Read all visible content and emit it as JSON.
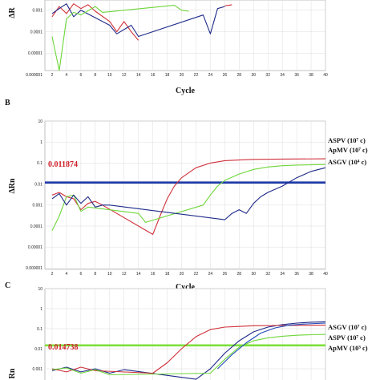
{
  "chart_data": [
    {
      "panel": "",
      "type": "line",
      "xlabel": "Cycle",
      "ylabel": "ΔRn",
      "log_y": true,
      "xlim": [
        1,
        40
      ],
      "ylim": [
        1e-06,
        10
      ],
      "x_ticks": [
        "2",
        "4",
        "6",
        "8",
        "10",
        "12",
        "14",
        "16",
        "18",
        "20",
        "22",
        "24",
        "26",
        "28",
        "30",
        "32",
        "34",
        "36",
        "38",
        "40"
      ],
      "y_ticks": [
        "0.001",
        "0.0001",
        "0.00001",
        "0.000001"
      ],
      "grid": true,
      "threshold": null,
      "series": [
        {
          "color": "#d0303a",
          "points": [
            [
              2,
              0.0005
            ],
            [
              3,
              0.0015
            ],
            [
              4,
              0.0007
            ],
            [
              5,
              0.002
            ],
            [
              6,
              0.0012
            ],
            [
              7,
              0.0018
            ],
            [
              8,
              0.0009
            ],
            [
              10,
              0.0003
            ],
            [
              11,
              0.0001
            ],
            [
              12,
              0.0003
            ],
            [
              13,
              0.0001
            ],
            [
              14,
              4e-05
            ]
          ]
        },
        {
          "color": "#1e2a8a",
          "points": [
            [
              2,
              0.0007
            ],
            [
              3,
              0.0012
            ],
            [
              4,
              0.002
            ],
            [
              5,
              0.0005
            ],
            [
              6,
              0.001
            ],
            [
              10,
              0.0002
            ],
            [
              11,
              8e-05
            ],
            [
              13,
              0.0002
            ],
            [
              14,
              6e-05
            ],
            [
              23,
              0.0006
            ],
            [
              24,
              8e-05
            ],
            [
              25,
              0.0012
            ],
            [
              26,
              0.0015
            ]
          ]
        },
        {
          "color": "#6ed63a",
          "points": [
            [
              2,
              6e-05
            ],
            [
              3,
              1.5e-06
            ],
            [
              4,
              0.0004
            ],
            [
              5,
              0.0008
            ],
            [
              6,
              0.0006
            ],
            [
              8,
              0.0015
            ],
            [
              9,
              0.0008
            ],
            [
              19,
              0.0017
            ],
            [
              20,
              0.001
            ],
            [
              21,
              0.0009
            ]
          ]
        },
        {
          "color": "#d0303a",
          "points": [
            [
              26,
              0.0016
            ],
            [
              27,
              0.0018
            ]
          ]
        }
      ],
      "legend": []
    },
    {
      "panel": "B",
      "type": "line",
      "xlabel": "Cycle",
      "ylabel": "ΔRn",
      "log_y": true,
      "xlim": [
        1,
        40
      ],
      "ylim": [
        1e-06,
        10
      ],
      "x_ticks": [
        "2",
        "4",
        "6",
        "8",
        "10",
        "12",
        "14",
        "16",
        "18",
        "20",
        "22",
        "24",
        "26",
        "28",
        "30",
        "32",
        "34",
        "36",
        "38",
        "40"
      ],
      "y_ticks": [
        "10",
        "1",
        "0.1",
        "0.01",
        "0.001",
        "0.0001",
        "0.00001",
        "0.000001"
      ],
      "grid": true,
      "threshold": {
        "value": 0.011874,
        "label": "0.011874",
        "color": "#1e3aa8"
      },
      "series": [
        {
          "name": "ASPV (10⁷ c)",
          "color": "#d0303a",
          "points": [
            [
              2,
              0.003
            ],
            [
              3,
              0.004
            ],
            [
              4,
              0.0025
            ],
            [
              5,
              0.002
            ],
            [
              6,
              0.0006
            ],
            [
              7,
              0.0012
            ],
            [
              8,
              0.0015
            ],
            [
              9,
              0.001
            ],
            [
              16,
              4e-05
            ],
            [
              17,
              0.0003
            ],
            [
              18,
              0.002
            ],
            [
              19,
              0.008
            ],
            [
              20,
              0.02
            ],
            [
              22,
              0.06
            ],
            [
              24,
              0.1
            ],
            [
              26,
              0.13
            ],
            [
              28,
              0.14
            ],
            [
              30,
              0.15
            ],
            [
              34,
              0.155
            ],
            [
              40,
              0.16
            ]
          ]
        },
        {
          "name": "ApMV (10⁷ c)",
          "color": "#6ed63a",
          "points": [
            [
              2,
              6e-05
            ],
            [
              3,
              0.0003
            ],
            [
              4,
              0.0025
            ],
            [
              5,
              0.003
            ],
            [
              6,
              0.0005
            ],
            [
              7,
              0.0008
            ],
            [
              14,
              0.0004
            ],
            [
              15,
              0.00015
            ],
            [
              23,
              0.001
            ],
            [
              24,
              0.003
            ],
            [
              25,
              0.008
            ],
            [
              26,
              0.015
            ],
            [
              28,
              0.03
            ],
            [
              30,
              0.05
            ],
            [
              32,
              0.065
            ],
            [
              34,
              0.075
            ],
            [
              36,
              0.08
            ],
            [
              40,
              0.085
            ]
          ]
        },
        {
          "name": "ASGV (10⁴ c)",
          "color": "#1e2a8a",
          "points": [
            [
              2,
              0.002
            ],
            [
              3,
              0.0035
            ],
            [
              4,
              0.001
            ],
            [
              5,
              0.003
            ],
            [
              6,
              0.0012
            ],
            [
              7,
              0.0025
            ],
            [
              8,
              0.0008
            ],
            [
              9,
              0.001
            ],
            [
              10,
              0.001
            ],
            [
              26,
              0.0002
            ],
            [
              27,
              0.0004
            ],
            [
              28,
              0.0006
            ],
            [
              29,
              0.0004
            ],
            [
              30,
              0.0012
            ],
            [
              31,
              0.0025
            ],
            [
              32,
              0.004
            ],
            [
              34,
              0.008
            ],
            [
              36,
              0.02
            ],
            [
              38,
              0.04
            ],
            [
              40,
              0.06
            ]
          ]
        }
      ],
      "legend": [
        "ASPV (10⁷ c)",
        "ApMV (10⁷ c)",
        "ASGV (10⁴ c)"
      ]
    },
    {
      "panel": "C",
      "type": "line",
      "xlabel": "",
      "ylabel": "ΔRn",
      "log_y": true,
      "xlim": [
        1,
        40
      ],
      "ylim": [
        1e-06,
        10
      ],
      "x_ticks": [],
      "y_ticks": [
        "10",
        "1",
        "0.1",
        "0.01",
        "0.001"
      ],
      "grid": true,
      "threshold": {
        "value": 0.014738,
        "label": "0.014738",
        "color": "#7ee03c"
      },
      "series": [
        {
          "name": "ASGV (10⁷ c)",
          "color": "#1e2a8a",
          "points": [
            [
              2,
              0.0008
            ],
            [
              4,
              0.0012
            ],
            [
              6,
              0.0007
            ],
            [
              8,
              0.001
            ],
            [
              10,
              0.0006
            ],
            [
              12,
              0.0009
            ],
            [
              22,
              0.0003
            ],
            [
              24,
              0.001
            ],
            [
              26,
              0.006
            ],
            [
              28,
              0.025
            ],
            [
              30,
              0.07
            ],
            [
              32,
              0.12
            ],
            [
              34,
              0.16
            ],
            [
              36,
              0.19
            ],
            [
              38,
              0.21
            ],
            [
              40,
              0.22
            ]
          ]
        },
        {
          "name": "ASPV (10⁷ c)",
          "color": "#d0303a",
          "points": [
            [
              2,
              0.001
            ],
            [
              4,
              0.0007
            ],
            [
              6,
              0.0012
            ],
            [
              8,
              0.0008
            ],
            [
              16,
              0.0006
            ],
            [
              18,
              0.002
            ],
            [
              20,
              0.01
            ],
            [
              22,
              0.04
            ],
            [
              24,
              0.09
            ],
            [
              26,
              0.12
            ],
            [
              28,
              0.13
            ],
            [
              30,
              0.14
            ],
            [
              34,
              0.145
            ],
            [
              40,
              0.15
            ]
          ]
        },
        {
          "name": "ApMV (10³ c)",
          "color": "#6ed63a",
          "points": [
            [
              2,
              0.0009
            ],
            [
              4,
              0.0011
            ],
            [
              6,
              0.0006
            ],
            [
              8,
              0.0009
            ],
            [
              10,
              0.0005
            ],
            [
              24,
              0.0006
            ],
            [
              26,
              0.003
            ],
            [
              28,
              0.012
            ],
            [
              30,
              0.025
            ],
            [
              32,
              0.035
            ],
            [
              34,
              0.042
            ],
            [
              36,
              0.047
            ],
            [
              38,
              0.05
            ],
            [
              40,
              0.052
            ]
          ]
        },
        {
          "name": "",
          "color": "#1e4ab8",
          "points": [
            [
              25,
              0.001
            ],
            [
              27,
              0.005
            ],
            [
              29,
              0.02
            ],
            [
              31,
              0.06
            ],
            [
              33,
              0.11
            ],
            [
              35,
              0.15
            ],
            [
              37,
              0.17
            ],
            [
              40,
              0.19
            ]
          ]
        }
      ],
      "legend": [
        "ASGV (10⁷ c)",
        "ASPV (10⁷ c)",
        "ApMV (10³ c)"
      ]
    }
  ],
  "labels": {
    "a_ylabel_fragment": "ΔR",
    "a_xlabel": "Cycle",
    "b_letter": "B",
    "b_ylabel": "ΔRn",
    "b_xlabel": "Cycle",
    "b_threshold": "0.011874",
    "b_legend_1": "ASPV (10⁷ c)",
    "b_legend_2": "ApMV (10⁷ c)",
    "b_legend_3": "ASGV (10⁴ c)",
    "c_letter": "C",
    "c_ylabel_fragment": "Rn",
    "c_threshold": "0.014738",
    "c_legend_1": "ASGV (10⁷ c)",
    "c_legend_2": "ASPV (10⁷ c)",
    "c_legend_3": "ApMV (10³ c)"
  },
  "colors": {
    "red": "#d0303a",
    "navy": "#1e2a8a",
    "green": "#6ed63a",
    "grid": "#dddddd",
    "threshold_b": "#1e3aa8",
    "threshold_c": "#7ee03c"
  }
}
